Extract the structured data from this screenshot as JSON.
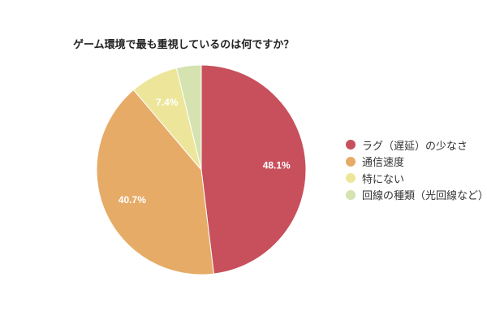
{
  "chart_data": {
    "type": "pie",
    "title": "ゲーム環境で最も重視しているのは何ですか？",
    "categories": [
      "ラグ（遅延）の少なさ",
      "通信速度",
      "特にない",
      "回線の種類（光回線など）"
    ],
    "values": [
      48.1,
      40.7,
      7.4,
      3.8
    ],
    "labels": [
      "48.1%",
      "40.7%",
      "7.4%",
      ""
    ],
    "colors": [
      "#c8505c",
      "#e6ab67",
      "#ede69a",
      "#d4e3b0"
    ],
    "legend_position": "right",
    "start_angle": "12 o'clock, clockwise"
  },
  "title": "ゲーム環境で最も重視しているのは何ですか？",
  "legend": [
    {
      "label": "ラグ（遅延）の少なさ",
      "color": "#c8505c"
    },
    {
      "label": "通信速度",
      "color": "#e6ab67"
    },
    {
      "label": "特にない",
      "color": "#ede69a"
    },
    {
      "label": "回線の種類（光回線など）",
      "color": "#d4e3b0"
    }
  ]
}
